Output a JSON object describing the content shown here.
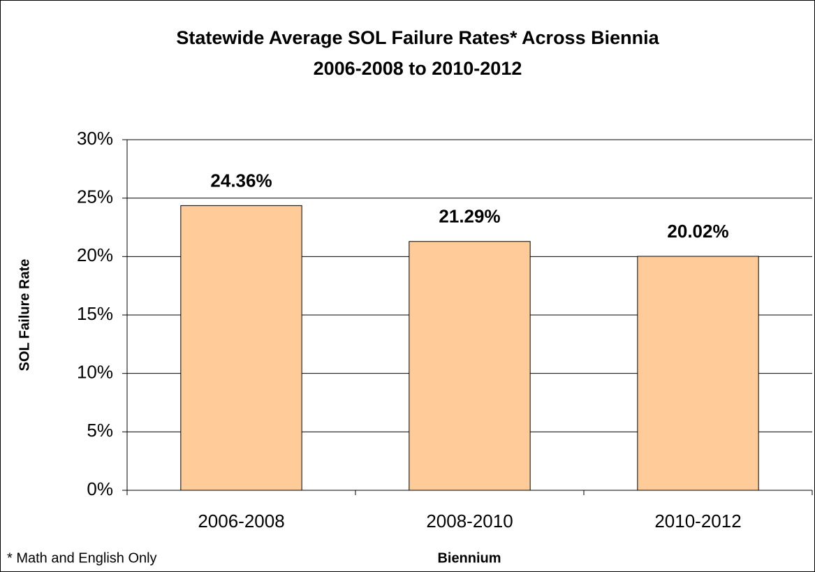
{
  "chart_data": {
    "type": "bar",
    "title": "Statewide Average SOL Failure Rates* Across Biennia",
    "subtitle": "2006-2008 to 2010-2012",
    "x_label": "Biennium",
    "y_label": "SOL Failure Rate",
    "footnote": "* Math and English Only",
    "categories": [
      "2006-2008",
      "2008-2010",
      "2010-2012"
    ],
    "values": [
      24.36,
      21.29,
      20.02
    ],
    "value_labels": [
      "24.36%",
      "21.29%",
      "20.02%"
    ],
    "color": "#ffcc99",
    "ylim": [
      0,
      30
    ],
    "yticks": [
      {
        "value": 0,
        "label": "0%"
      },
      {
        "value": 5,
        "label": "5%"
      },
      {
        "value": 10,
        "label": "10%"
      },
      {
        "value": 15,
        "label": "15%"
      },
      {
        "value": 20,
        "label": "20%"
      },
      {
        "value": 25,
        "label": "25%"
      },
      {
        "value": 30,
        "label": "30%"
      }
    ],
    "grid": true
  }
}
